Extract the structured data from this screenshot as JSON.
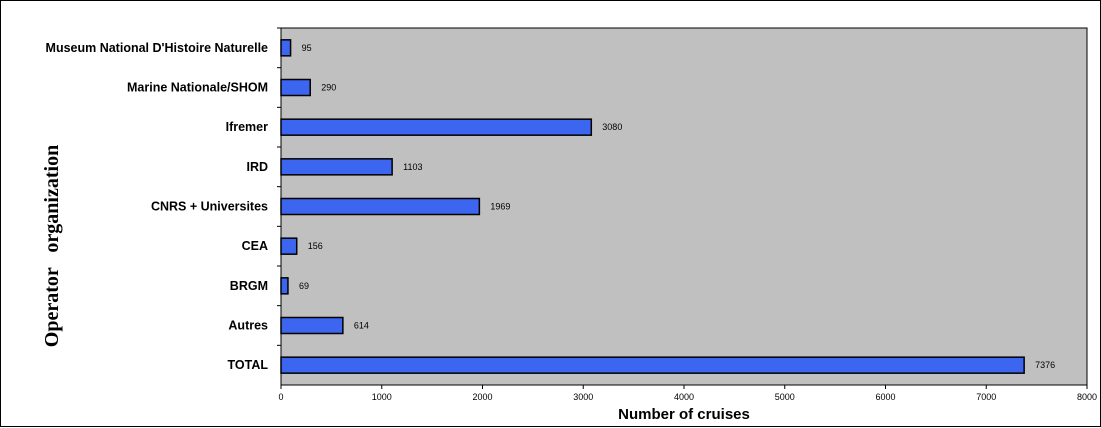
{
  "chart_data": {
    "type": "bar",
    "orientation": "horizontal",
    "categories": [
      "Museum National D'Histoire Naturelle",
      "Marine Nationale/SHOM",
      "Ifremer",
      "IRD",
      "CNRS + Universites",
      "CEA",
      "BRGM",
      "Autres",
      "TOTAL"
    ],
    "values": [
      95,
      290,
      3080,
      1103,
      1969,
      156,
      69,
      614,
      7376
    ],
    "xlabel": "Number of cruises",
    "ylabel": "Operator   organization",
    "xlim": [
      0,
      8000
    ],
    "xticks": [
      "0",
      "1000",
      "2000",
      "3000",
      "4000",
      "5000",
      "6000",
      "7000",
      "8000"
    ],
    "colors": {
      "bar": "#3d66f0",
      "plot_background": "#c0c0c0",
      "bar_border": "#000000"
    },
    "grid": false,
    "legend": "none"
  }
}
